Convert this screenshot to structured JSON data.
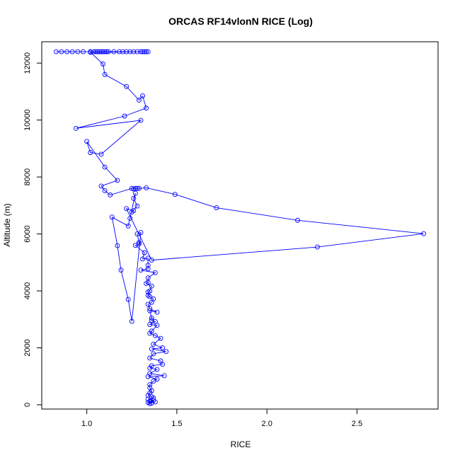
{
  "chart_data": {
    "type": "line",
    "title": "ORCAS RF14vlonN RICE (Log)",
    "xlabel": "RICE",
    "ylabel": "Altitude (m)",
    "xlim": [
      0.75,
      2.95
    ],
    "ylim": [
      -150,
      12750
    ],
    "xticks": [
      1.0,
      1.5,
      2.0,
      2.5
    ],
    "xtick_labels": [
      "1.0",
      "1.5",
      "2.0",
      "2.5"
    ],
    "yticks": [
      0,
      2000,
      4000,
      6000,
      8000,
      10000,
      12000
    ],
    "ytick_labels": [
      "0",
      "2000",
      "4000",
      "6000",
      "8000",
      "10000",
      "12000"
    ],
    "grid": false,
    "legend": "none",
    "series": [
      {
        "color": "#0000ff",
        "marker": "open-circle",
        "points": [
          [
            0.83,
            12400
          ],
          [
            0.86,
            12400
          ],
          [
            0.89,
            12400
          ],
          [
            0.92,
            12400
          ],
          [
            0.95,
            12400
          ],
          [
            0.98,
            12400
          ],
          [
            1.02,
            12400
          ],
          [
            1.04,
            12400
          ],
          [
            1.05,
            12400
          ],
          [
            1.06,
            12400
          ],
          [
            1.07,
            12400
          ],
          [
            1.08,
            12400
          ],
          [
            1.09,
            12400
          ],
          [
            1.1,
            12400
          ],
          [
            1.11,
            12400
          ],
          [
            1.12,
            12400
          ],
          [
            1.15,
            12400
          ],
          [
            1.18,
            12400
          ],
          [
            1.2,
            12400
          ],
          [
            1.22,
            12400
          ],
          [
            1.24,
            12400
          ],
          [
            1.26,
            12400
          ],
          [
            1.28,
            12400
          ],
          [
            1.3,
            12400
          ],
          [
            1.31,
            12400
          ],
          [
            1.32,
            12400
          ],
          [
            1.33,
            12400
          ],
          [
            1.34,
            12400
          ],
          [
            1.02,
            12380
          ],
          [
            1.09,
            11970
          ],
          [
            1.1,
            11600
          ],
          [
            1.22,
            11180
          ],
          [
            1.29,
            10700
          ],
          [
            1.31,
            10850
          ],
          [
            1.33,
            10420
          ],
          [
            1.21,
            10140
          ],
          [
            0.94,
            9710
          ],
          [
            1.3,
            9990
          ],
          [
            1.08,
            8800
          ],
          [
            1.02,
            8860
          ],
          [
            1.0,
            9250
          ],
          [
            1.1,
            8350
          ],
          [
            1.17,
            7880
          ],
          [
            1.08,
            7680
          ],
          [
            1.1,
            7520
          ],
          [
            1.13,
            7370
          ],
          [
            1.25,
            7600
          ],
          [
            1.26,
            7580
          ],
          [
            1.27,
            7600
          ],
          [
            1.28,
            7600
          ],
          [
            1.29,
            7600
          ],
          [
            1.33,
            7620
          ],
          [
            1.49,
            7390
          ],
          [
            1.72,
            6920
          ],
          [
            2.17,
            6480
          ],
          [
            2.87,
            6010
          ],
          [
            2.28,
            5540
          ],
          [
            1.36,
            5080
          ],
          [
            1.22,
            6890
          ],
          [
            1.26,
            6820
          ],
          [
            1.25,
            6770
          ],
          [
            1.28,
            6980
          ],
          [
            1.26,
            7250
          ],
          [
            1.27,
            7430
          ],
          [
            1.24,
            6550
          ],
          [
            1.23,
            6280
          ],
          [
            1.14,
            6590
          ],
          [
            1.17,
            5590
          ],
          [
            1.19,
            4730
          ],
          [
            1.23,
            3700
          ],
          [
            1.25,
            2930
          ],
          [
            1.3,
            6050
          ],
          [
            1.28,
            6000
          ],
          [
            1.29,
            5700
          ],
          [
            1.29,
            5650
          ],
          [
            1.27,
            5600
          ],
          [
            1.32,
            5340
          ],
          [
            1.31,
            5120
          ],
          [
            1.34,
            5150
          ],
          [
            1.34,
            4900
          ],
          [
            1.34,
            4780
          ],
          [
            1.3,
            4730
          ],
          [
            1.38,
            4640
          ],
          [
            1.34,
            4460
          ],
          [
            1.34,
            4300
          ],
          [
            1.33,
            4260
          ],
          [
            1.36,
            4170
          ],
          [
            1.35,
            4000
          ],
          [
            1.34,
            3960
          ],
          [
            1.34,
            3840
          ],
          [
            1.35,
            3800
          ],
          [
            1.37,
            3720
          ],
          [
            1.36,
            3600
          ],
          [
            1.34,
            3530
          ],
          [
            1.35,
            3380
          ],
          [
            1.39,
            3250
          ],
          [
            1.35,
            3300
          ],
          [
            1.36,
            3050
          ],
          [
            1.36,
            2970
          ],
          [
            1.38,
            2920
          ],
          [
            1.35,
            2820
          ],
          [
            1.39,
            2790
          ],
          [
            1.36,
            2590
          ],
          [
            1.35,
            2510
          ],
          [
            1.38,
            2430
          ],
          [
            1.41,
            2330
          ],
          [
            1.37,
            2130
          ],
          [
            1.42,
            2000
          ],
          [
            1.36,
            1960
          ],
          [
            1.44,
            1870
          ],
          [
            1.37,
            1790
          ],
          [
            1.35,
            1640
          ],
          [
            1.41,
            1540
          ],
          [
            1.42,
            1420
          ],
          [
            1.36,
            1370
          ],
          [
            1.35,
            1290
          ],
          [
            1.39,
            1240
          ],
          [
            1.35,
            1100
          ],
          [
            1.43,
            1020
          ],
          [
            1.34,
            990
          ],
          [
            1.39,
            900
          ],
          [
            1.37,
            830
          ],
          [
            1.35,
            710
          ],
          [
            1.35,
            600
          ],
          [
            1.36,
            490
          ],
          [
            1.35,
            420
          ],
          [
            1.34,
            330
          ],
          [
            1.36,
            280
          ],
          [
            1.37,
            240
          ],
          [
            1.34,
            200
          ],
          [
            1.37,
            150
          ],
          [
            1.35,
            120
          ],
          [
            1.38,
            100
          ],
          [
            1.34,
            80
          ],
          [
            1.36,
            60
          ],
          [
            1.35,
            40
          ]
        ]
      }
    ]
  }
}
